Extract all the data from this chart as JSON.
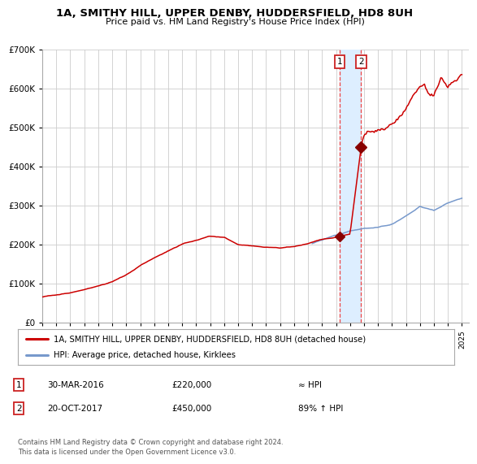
{
  "title": "1A, SMITHY HILL, UPPER DENBY, HUDDERSFIELD, HD8 8UH",
  "subtitle": "Price paid vs. HM Land Registry's House Price Index (HPI)",
  "legend_line1": "1A, SMITHY HILL, UPPER DENBY, HUDDERSFIELD, HD8 8UH (detached house)",
  "legend_line2": "HPI: Average price, detached house, Kirklees",
  "annotation1_date": "30-MAR-2016",
  "annotation1_price": "£220,000",
  "annotation1_hpi": "≈ HPI",
  "annotation2_date": "20-OCT-2017",
  "annotation2_price": "£450,000",
  "annotation2_hpi": "89% ↑ HPI",
  "footer": "Contains HM Land Registry data © Crown copyright and database right 2024.\nThis data is licensed under the Open Government Licence v3.0.",
  "hpi_color": "#7799cc",
  "price_color": "#cc0000",
  "marker_color": "#880000",
  "vline_color": "#ee4444",
  "highlight_color": "#ddeeff",
  "grid_color": "#cccccc",
  "ylim": [
    0,
    700000
  ],
  "sale1_x": 2016.25,
  "sale1_y": 220000,
  "sale2_x": 2017.8,
  "sale2_y": 450000,
  "xmin": 1995,
  "xmax": 2025.5
}
